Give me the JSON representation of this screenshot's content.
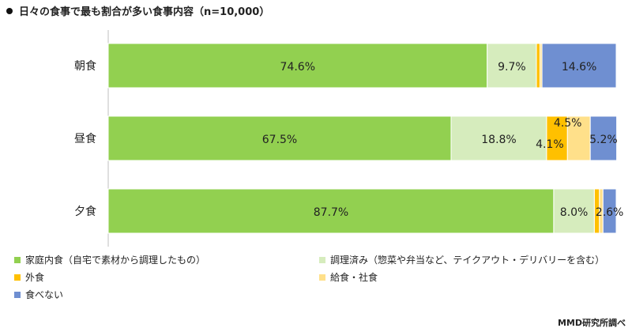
{
  "title": "日々の食事で最も割合が多い食事内容（n=10,000）",
  "source": "MMD研究所調べ",
  "chart_data": {
    "type": "bar",
    "orientation": "horizontal",
    "stacked": true,
    "percent": true,
    "title": "日々の食事で最も割合が多い食事内容（n=10,000）",
    "categories": [
      "朝食",
      "昼食",
      "夕食"
    ],
    "xlim": [
      0,
      100
    ],
    "grid": false,
    "legend_position": "bottom",
    "series": [
      {
        "name": "家庭内食（自宅で素材から調理したもの）",
        "color": "#92d050",
        "values": [
          74.6,
          67.5,
          87.7
        ],
        "labels": [
          "74.6%",
          "67.5%",
          "87.7%"
        ]
      },
      {
        "name": "調理済み（惣菜や弁当など、テイクアウト・デリバリーを含む）",
        "color": "#d6ecbd",
        "values": [
          9.7,
          18.8,
          8.0
        ],
        "labels": [
          "9.7%",
          "18.8%",
          "8.0%"
        ]
      },
      {
        "name": "外食",
        "color": "#ffc000",
        "values": [
          0.7,
          4.1,
          1.0
        ],
        "labels": [
          "",
          "4.1%",
          ""
        ]
      },
      {
        "name": "給食・社食",
        "color": "#ffe08a",
        "values": [
          0.4,
          4.5,
          0.7
        ],
        "labels": [
          "",
          "4.5%",
          ""
        ]
      },
      {
        "name": "食べない",
        "color": "#6f8fd1",
        "values": [
          14.6,
          5.2,
          2.6
        ],
        "labels": [
          "14.6%",
          "5.2%",
          "2.6%"
        ]
      }
    ]
  }
}
